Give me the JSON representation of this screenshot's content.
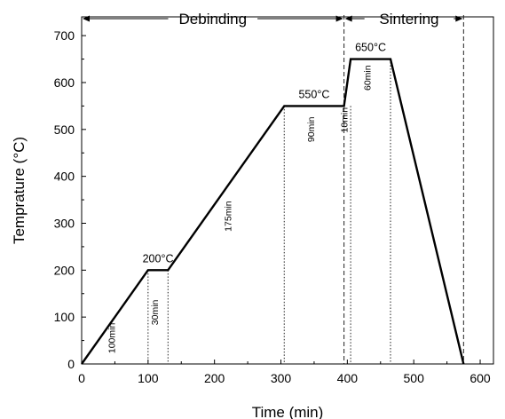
{
  "chart_data": {
    "type": "line",
    "xlabel": "Time (min)",
    "ylabel": "Temprature (°C)",
    "xlim": [
      0,
      620
    ],
    "ylim": [
      0,
      740
    ],
    "x_ticks": [
      0,
      100,
      200,
      300,
      400,
      500,
      600
    ],
    "y_ticks": [
      0,
      100,
      200,
      300,
      400,
      500,
      600,
      700
    ],
    "series": [
      {
        "x": [
          0,
          100,
          130,
          305,
          395,
          405,
          465,
          575
        ],
        "y": [
          0,
          200,
          200,
          550,
          550,
          650,
          650,
          0
        ],
        "color": "#000000"
      }
    ],
    "phases": [
      {
        "label": "Debinding",
        "start": 0,
        "end": 395
      },
      {
        "label": "Sintering",
        "start": 395,
        "end": 575
      }
    ],
    "temperature_labels": [
      {
        "text": "200°C",
        "x": 115,
        "y": 200
      },
      {
        "text": "550°C",
        "x": 350,
        "y": 550
      },
      {
        "text": "650°C",
        "x": 435,
        "y": 650
      }
    ],
    "durations": [
      {
        "text": "100min",
        "x": 50,
        "y": 55
      },
      {
        "text": "30min",
        "x": 115,
        "y": 110
      },
      {
        "text": "175min",
        "x": 225,
        "y": 315
      },
      {
        "text": "90min",
        "x": 350,
        "y": 500
      },
      {
        "text": "10min",
        "x": 400,
        "y": 520
      },
      {
        "text": "60min",
        "x": 435,
        "y": 610
      }
    ],
    "dotted_verticals": [
      {
        "x": 100,
        "y_top": 200
      },
      {
        "x": 130,
        "y_top": 200
      },
      {
        "x": 305,
        "y_top": 550
      },
      {
        "x": 405,
        "y_top": 550
      },
      {
        "x": 465,
        "y_top": 650
      }
    ],
    "dashed_verticals": [
      395,
      575
    ]
  }
}
